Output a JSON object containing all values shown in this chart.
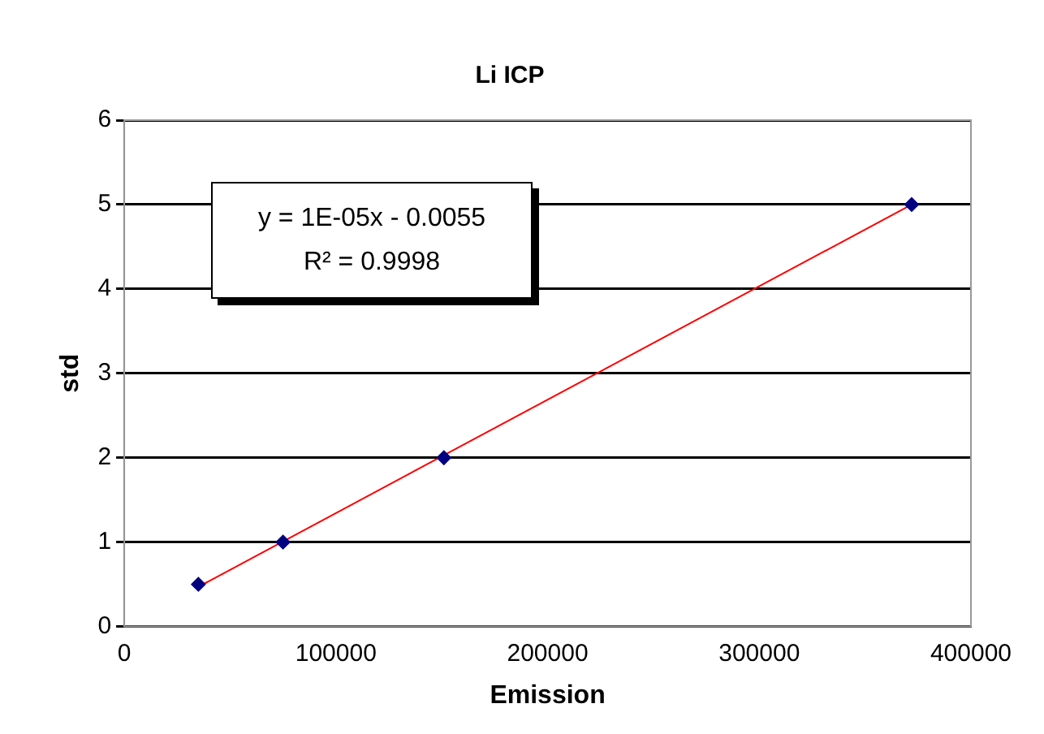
{
  "chart_data": {
    "type": "scatter",
    "title": "Li ICP",
    "xlabel": "Emission",
    "ylabel": "std",
    "series": [
      {
        "type": "scatter",
        "color": "#000080",
        "x": [
          35000,
          75000,
          151000,
          372000
        ],
        "values": [
          0.5,
          1,
          2,
          5
        ],
        "marker": "diamond"
      },
      {
        "type": "line",
        "color": "#ff0000",
        "x": [
          35000,
          372000
        ],
        "values": [
          0.47,
          5.0
        ],
        "marker": "none"
      }
    ],
    "xlim": [
      0,
      400000
    ],
    "xticks": [
      0,
      100000,
      200000,
      300000,
      400000
    ],
    "ylim": [
      0,
      6
    ],
    "yticks": [
      0,
      1,
      2,
      3,
      4,
      5,
      6
    ],
    "grid": "y",
    "legend": false,
    "annotations": [
      "y = 1E-05x - 0.0055",
      "R² = 0.9998"
    ]
  }
}
